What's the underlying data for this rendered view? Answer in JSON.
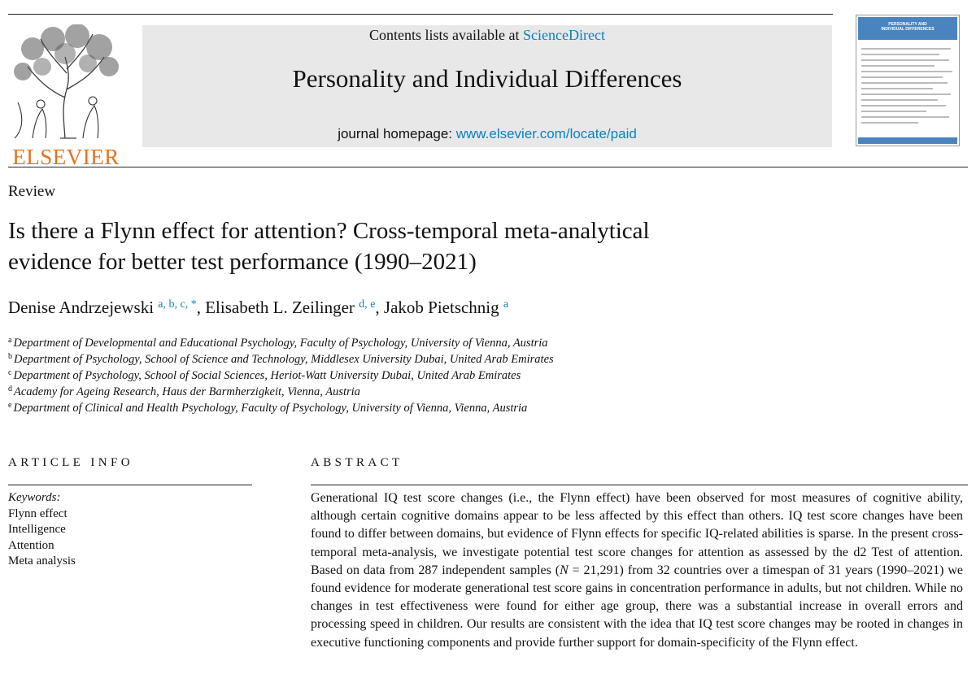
{
  "header": {
    "publisher": "ELSEVIER",
    "contents_prefix": "Contents lists available at ",
    "contents_link": "ScienceDirect",
    "journal_title": "Personality and Individual Differences",
    "homepage_prefix": "journal homepage: ",
    "homepage_link": "www.elsevier.com/locate/paid",
    "cover_title_1": "PERSONALITY AND",
    "cover_title_2": "INDIVIDUAL DIFFERENCES",
    "colors": {
      "publisher_orange": "#e9711c",
      "link_blue": "#0b7fbf",
      "masthead_gray": "#e8e8e8"
    }
  },
  "article": {
    "type": "Review",
    "title_line1": "Is there a Flynn effect for attention? Cross-temporal meta-analytical",
    "title_line2": "evidence for better test performance (1990–2021)",
    "authors": [
      {
        "name": "Denise Andrzejewski",
        "sup": "a, b, c, *"
      },
      {
        "name": "Elisabeth L. Zeilinger",
        "sup": "d, e"
      },
      {
        "name": "Jakob Pietschnig",
        "sup": "a"
      }
    ],
    "author_separator": ", ",
    "affiliations": [
      {
        "mark": "a",
        "text": "Department of Developmental and Educational Psychology, Faculty of Psychology, University of Vienna, Austria"
      },
      {
        "mark": "b",
        "text": "Department of Psychology, School of Science and Technology, Middlesex University Dubai, United Arab Emirates"
      },
      {
        "mark": "c",
        "text": "Department of Psychology, School of Social Sciences, Heriot-Watt University Dubai, United Arab Emirates"
      },
      {
        "mark": "d",
        "text": "Academy for Ageing Research, Haus der Barmherzigkeit, Vienna, Austria"
      },
      {
        "mark": "e",
        "text": "Department of Clinical and Health Psychology, Faculty of Psychology, University of Vienna, Vienna, Austria"
      }
    ]
  },
  "article_info": {
    "heading": "ARTICLE INFO",
    "keywords_label": "Keywords:",
    "keywords": [
      "Flynn effect",
      "Intelligence",
      "Attention",
      "Meta analysis"
    ]
  },
  "abstract": {
    "heading": "ABSTRACT",
    "part1": "Generational IQ test score changes (i.e., the Flynn effect) have been observed for most measures of cognitive ability, although certain cognitive domains appear to be less affected by this effect than others. IQ test score changes have been found to differ between domains, but evidence of Flynn effects for specific IQ-related abilities is sparse. In the present cross-temporal meta-analysis, we investigate potential test score changes for attention as assessed by the d2 Test of attention. Based on data from 287 independent samples (",
    "n_symbol": "N",
    "part2": " = 21,291) from 32 countries over a timespan of 31 years (1990–2021) we found evidence for moderate generational test score gains in concentration performance in adults, but not children. While no changes in test effectiveness were found for either age group, there was a substantial increase in overall errors and processing speed in children. Our results are consistent with the idea that IQ test score changes may be rooted in changes in executive functioning components and provide further support for domain-specificity of the Flynn effect."
  }
}
